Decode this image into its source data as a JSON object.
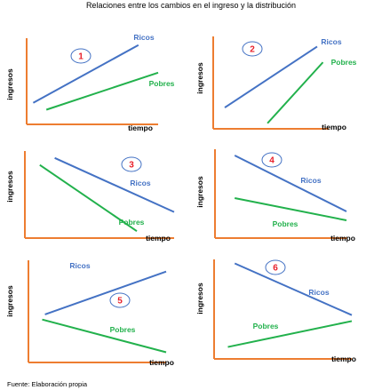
{
  "title": "Relaciones entre los cambios en el ingreso y la distribución",
  "source": "Fuente: Elaboración propia",
  "colors": {
    "axis": "#ED7D31",
    "ricos": "#4472C4",
    "pobres": "#22B14C",
    "badge_border": "#4472C4",
    "badge_text": "#E8202A"
  },
  "chart_data": [
    {
      "type": "line",
      "panel": "1",
      "xlabel": "tiempo",
      "ylabel": "ingresos",
      "xlim": [
        0,
        10
      ],
      "ylim": [
        0,
        10
      ],
      "series": [
        {
          "name": "Ricos",
          "x": [
            0.5,
            8.5
          ],
          "y": [
            2.5,
            9.2
          ]
        },
        {
          "name": "Pobres",
          "x": [
            1.5,
            10
          ],
          "y": [
            1.7,
            6.0
          ]
        }
      ]
    },
    {
      "type": "line",
      "panel": "2",
      "xlabel": "tiempo",
      "ylabel": "ingresos",
      "xlim": [
        0,
        10
      ],
      "ylim": [
        0,
        10
      ],
      "series": [
        {
          "name": "Ricos",
          "x": [
            1.0,
            9.0
          ],
          "y": [
            2.3,
            8.9
          ]
        },
        {
          "name": "Pobres",
          "x": [
            4.7,
            9.5
          ],
          "y": [
            0.6,
            7.2
          ]
        }
      ]
    },
    {
      "type": "line",
      "panel": "3",
      "xlabel": "tiempo",
      "ylabel": "ingresos",
      "xlim": [
        0,
        10
      ],
      "ylim": [
        0,
        10
      ],
      "series": [
        {
          "name": "Ricos",
          "x": [
            2.0,
            10.0
          ],
          "y": [
            9.2,
            3.0
          ]
        },
        {
          "name": "Pobres",
          "x": [
            1.0,
            7.5
          ],
          "y": [
            8.4,
            0.8
          ]
        }
      ]
    },
    {
      "type": "line",
      "panel": "4",
      "xlabel": "tiempo",
      "ylabel": "ingresos",
      "xlim": [
        0,
        10
      ],
      "ylim": [
        0,
        10
      ],
      "series": [
        {
          "name": "Ricos",
          "x": [
            1.5,
            10.0
          ],
          "y": [
            9.3,
            3.0
          ]
        },
        {
          "name": "Pobres",
          "x": [
            1.5,
            10.0
          ],
          "y": [
            4.5,
            2.0
          ]
        }
      ]
    },
    {
      "type": "line",
      "panel": "5",
      "xlabel": "tiempo",
      "ylabel": "ingresos",
      "xlim": [
        0,
        10
      ],
      "ylim": [
        0,
        10
      ],
      "series": [
        {
          "name": "Ricos",
          "x": [
            1.2,
            10.0
          ],
          "y": [
            4.7,
            8.9
          ]
        },
        {
          "name": "Pobres",
          "x": [
            1.0,
            10.0
          ],
          "y": [
            4.2,
            1.0
          ]
        }
      ]
    },
    {
      "type": "line",
      "panel": "6",
      "xlabel": "tiempo",
      "ylabel": "ingresos",
      "xlim": [
        0,
        10
      ],
      "ylim": [
        0,
        10
      ],
      "series": [
        {
          "name": "Ricos",
          "x": [
            1.5,
            10.0
          ],
          "y": [
            9.6,
            4.4
          ]
        },
        {
          "name": "Pobres",
          "x": [
            1.0,
            10.0
          ],
          "y": [
            1.2,
            3.8
          ]
        }
      ]
    }
  ]
}
